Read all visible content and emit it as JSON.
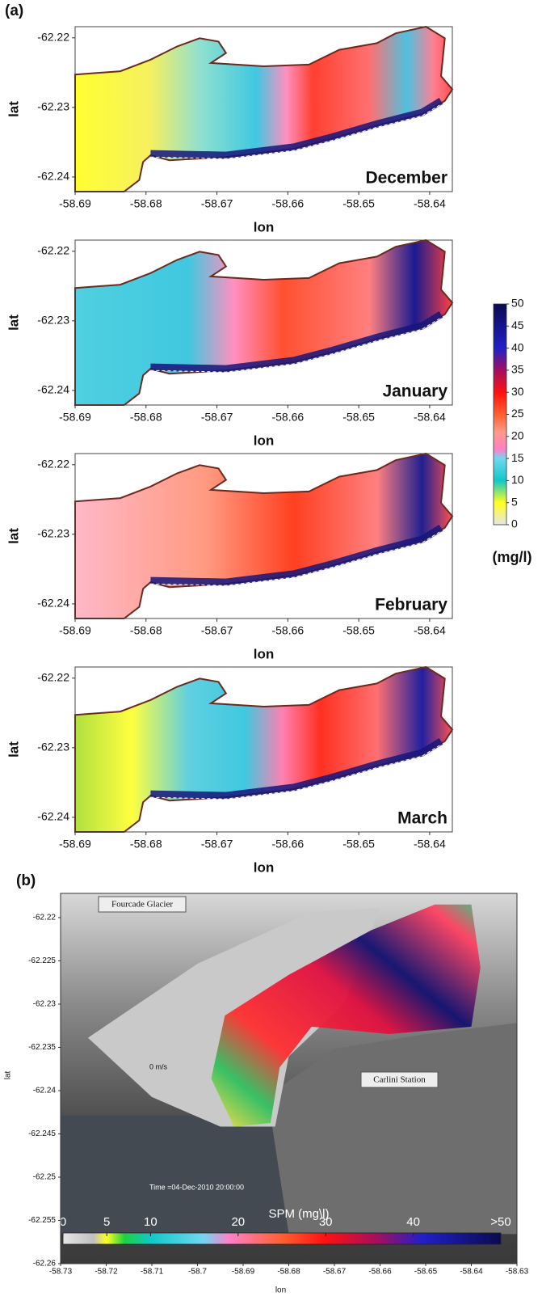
{
  "panel_labels": [
    "(a)",
    "(b)"
  ],
  "colorbar": {
    "label": "(mg/l)",
    "lim": [
      0,
      50
    ],
    "ticks": [
      0,
      5,
      10,
      15,
      20,
      25,
      30,
      35,
      40,
      45,
      50
    ]
  },
  "chart_data": [
    {
      "type": "map",
      "title": "December",
      "xlabel": "lon",
      "ylabel": "lat",
      "xlim": [
        -58.69,
        -58.6368
      ],
      "ylim": [
        -62.2421,
        -62.2184
      ],
      "xticks": [
        -58.69,
        -58.68,
        -58.67,
        -58.66,
        -58.65,
        -58.64
      ],
      "yticks": [
        -62.22,
        -62.23,
        -62.24
      ]
    },
    {
      "type": "map",
      "title": "January",
      "xlabel": "lon",
      "ylabel": "lat",
      "xlim": [
        -58.69,
        -58.6368
      ],
      "ylim": [
        -62.2421,
        -62.2184
      ],
      "xticks": [
        -58.69,
        -58.68,
        -58.67,
        -58.66,
        -58.65,
        -58.64
      ],
      "yticks": [
        -62.22,
        -62.23,
        -62.24
      ]
    },
    {
      "type": "map",
      "title": "February",
      "xlabel": "lon",
      "ylabel": "lat",
      "xlim": [
        -58.69,
        -58.6368
      ],
      "ylim": [
        -62.2421,
        -62.2184
      ],
      "xticks": [
        -58.69,
        -58.68,
        -58.67,
        -58.66,
        -58.65,
        -58.64
      ],
      "yticks": [
        -62.22,
        -62.23,
        -62.24
      ]
    },
    {
      "type": "map",
      "title": "March",
      "xlabel": "lon",
      "ylabel": "lat",
      "xlim": [
        -58.69,
        -58.6368
      ],
      "ylim": [
        -62.2421,
        -62.2184
      ],
      "xticks": [
        -58.69,
        -58.68,
        -58.67,
        -58.66,
        -58.65,
        -58.64
      ],
      "yticks": [
        -62.22,
        -62.23,
        -62.24
      ]
    },
    {
      "type": "satellite",
      "xlabel": "lon",
      "ylabel": "lat",
      "xlim": [
        -58.73,
        -58.63
      ],
      "ylim": [
        -62.26,
        -62.2172
      ],
      "xticks": [
        -58.73,
        -58.72,
        -58.71,
        -58.7,
        -58.69,
        -58.68,
        -58.67,
        -58.66,
        -58.65,
        -58.64,
        -58.63
      ],
      "yticks": [
        -62.22,
        -62.225,
        -62.23,
        -62.235,
        -62.24,
        -62.245,
        -62.25,
        -62.255,
        -62.26
      ],
      "annotations": [
        "Fourcade Glacier",
        "Carlini Station",
        "0 m/s",
        "Time =04-Dec-2010 20:00:00"
      ],
      "colorbar": {
        "title": "SPM (mg\\l)",
        "lim": [
          0,
          50
        ],
        "ticks": [
          0,
          5,
          10,
          20,
          30,
          40,
          {
            "value": 50,
            "label": ">50"
          }
        ]
      }
    }
  ]
}
